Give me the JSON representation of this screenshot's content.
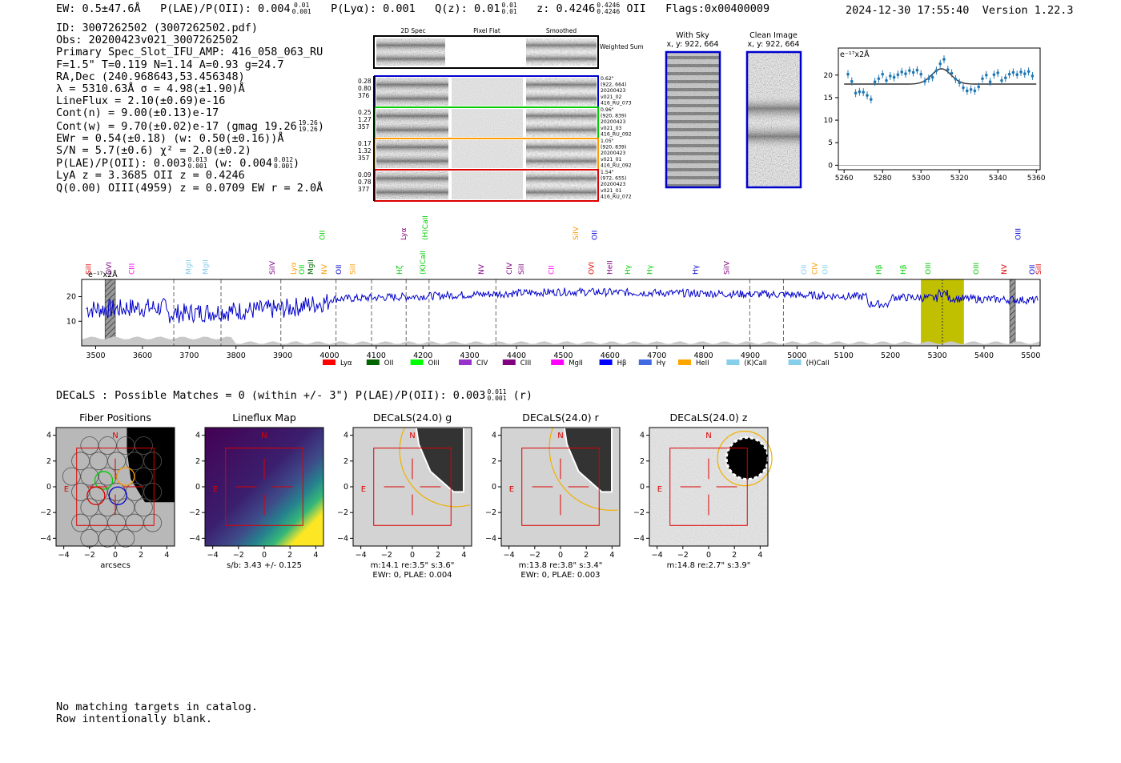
{
  "header": {
    "ew": "EW: 0.5±47.6Å",
    "plae": "P(LAE)/P(OII): 0.004",
    "plae_hi": "0.01",
    "plae_lo": "0.001",
    "plya": "P(Lyα): 0.001",
    "qz": "Q(z): 0.01",
    "qz_hi": "0.01",
    "qz_lo": "0.01",
    "z": "z: 0.4246",
    "z_hi": "0.4246",
    "z_lo": "0.4246",
    "z_line": "OII",
    "flags": "Flags:0x00400009",
    "timestamp": "2024-12-30 17:55:40",
    "version": "Version 1.22.3"
  },
  "info": {
    "id": "ID: 3007262502 (3007262502.pdf)",
    "obs": "Obs: 20200423v021_3007262502",
    "primary": "Primary Spec_Slot_IFU_AMP: 416_058_063_RU",
    "fiber_params": "F=1.5\"  T=0.119  N=1.14  A=0.93  g=24.7",
    "radec": "RA,Dec (240.968643,53.456348)",
    "lambda": "λ = 5310.63Å  σ = 4.98(±1.90)Å",
    "lineflux": "LineFlux = 2.10(±0.69)e-16",
    "cont_n": "Cont(n) = 9.00(±0.13)e-17",
    "cont_w": "Cont(w) = 9.70(±0.02)e-17 (gmag 19.26",
    "cont_w_hi": "19.26",
    "cont_w_lo": "19.26",
    "ewr": "EWr = 0.54(±0.18) (w: 0.50(±0.16))Å",
    "sn": "S/N = 5.7(±0.6)  χ² = 2.0(±0.2)",
    "plae": "P(LAE)/P(OII): 0.003",
    "plae_hi": "0.013",
    "plae_lo": "0.001",
    "plae_w": "(w: 0.004",
    "plae_w_hi": "0.012",
    "plae_w_lo": "0.001",
    "lya": "LyA z = 3.3685  OII z = 0.4246",
    "q": "Q(0.00) OIII(4959) z = 0.0709  EW r = 2.0Å"
  },
  "cutouts": {
    "col_headers": [
      "2D Spec",
      "Pixel Flat",
      "Smoothed"
    ],
    "weighted_sum": "Weighted Sum",
    "rows": [
      {
        "left": [
          "0.28",
          "0.80",
          "376"
        ],
        "right": [
          "0.62\"",
          "(922, 664)",
          "20200423",
          "v021_02",
          "416_RU_073"
        ],
        "color": "#0000cc"
      },
      {
        "left": [
          "0.25",
          "1.27",
          "357"
        ],
        "right": [
          "0.96\"",
          "(920, 839)",
          "20200423",
          "v021_03",
          "416_RU_092"
        ],
        "color": "#00cc00"
      },
      {
        "left": [
          "0.17",
          "1.32",
          "357"
        ],
        "right": [
          "1.05\"",
          "(920, 839)",
          "20200423",
          "v021_01",
          "416_RU_092"
        ],
        "color": "#ff9900"
      },
      {
        "left": [
          "0.09",
          "0.78",
          "377"
        ],
        "right": [
          "1.54\"",
          "(972, 655)",
          "20200423",
          "v021_01",
          "416_RU_072"
        ],
        "color": "#dd0000"
      }
    ],
    "with_sky_title": "With Sky",
    "with_sky_xy": "x, y: 922, 664",
    "clean_title": "Clean Image",
    "clean_xy": "x, y: 922, 664"
  },
  "chart_data": [
    {
      "type": "scatter",
      "name": "zoom-spectrum",
      "units_label": "e⁻¹⁷x2Å",
      "xlim": [
        5257,
        5362
      ],
      "ylim": [
        -1,
        26
      ],
      "xticks": [
        5260,
        5280,
        5300,
        5320,
        5340,
        5360
      ],
      "yticks": [
        0,
        5,
        10,
        15,
        20
      ],
      "x": [
        5262,
        5264,
        5266,
        5268,
        5270,
        5272,
        5274,
        5276,
        5278,
        5280,
        5282,
        5284,
        5286,
        5288,
        5290,
        5292,
        5294,
        5296,
        5298,
        5300,
        5302,
        5304,
        5306,
        5308,
        5310,
        5312,
        5314,
        5316,
        5318,
        5320,
        5322,
        5324,
        5326,
        5328,
        5330,
        5332,
        5334,
        5336,
        5338,
        5340,
        5342,
        5344,
        5346,
        5348,
        5350,
        5352,
        5354,
        5356,
        5358
      ],
      "y": [
        20.2,
        18.6,
        16,
        16.3,
        16.2,
        15.5,
        14.6,
        18.5,
        19.2,
        20.2,
        18.8,
        19.8,
        19.5,
        20.1,
        20.7,
        20.3,
        21,
        20.6,
        21.1,
        20.2,
        18.6,
        19.2,
        19.5,
        21,
        22.5,
        23.5,
        21.2,
        20.4,
        19.1,
        18.3,
        17.2,
        16.5,
        16.8,
        16.5,
        17.4,
        19.2,
        20,
        18.5,
        20.1,
        20.5,
        18.8,
        19.4,
        20.2,
        20.6,
        20.1,
        20.7,
        20.3,
        20.8,
        19.8
      ],
      "fit": {
        "continuum": 18,
        "amplitude": 3.4,
        "center": 5310.6,
        "sigma": 5
      }
    },
    {
      "type": "line",
      "name": "full-spectrum",
      "units_label": "e⁻¹⁷x2Å",
      "xlim": [
        3470,
        5520
      ],
      "ylim": [
        0,
        27
      ],
      "xticks": [
        3500,
        3600,
        3700,
        3800,
        3900,
        4000,
        4100,
        4200,
        4300,
        4400,
        4500,
        4600,
        4700,
        4800,
        4900,
        5000,
        5100,
        5200,
        5300,
        5400,
        5500
      ],
      "yticks": [
        10,
        20
      ],
      "line_marks": [
        3667,
        3768,
        3896,
        4014,
        4090,
        4164,
        4213,
        4356,
        4899,
        4971,
        5311
      ],
      "line_labels": [
        {
          "x": 3490,
          "text": "SiII",
          "color": "#dd0000",
          "row": "mid"
        },
        {
          "x": 3533,
          "text": "OVI",
          "color": "#800080",
          "row": "mid"
        },
        {
          "x": 3582,
          "text": "CIII",
          "color": "#ff00ff",
          "row": "mid"
        },
        {
          "x": 3704,
          "text": "MgII",
          "color": "#87ceeb",
          "row": "mid"
        },
        {
          "x": 3740,
          "text": "MgII",
          "color": "#87ceeb",
          "row": "mid"
        },
        {
          "x": 3883,
          "text": "SiIV",
          "color": "#800080",
          "row": "mid"
        },
        {
          "x": 3928,
          "text": "Lyα",
          "color": "#ff9900",
          "row": "mid"
        },
        {
          "x": 3946,
          "text": "OII",
          "color": "#00cc00",
          "row": "mid"
        },
        {
          "x": 3965,
          "text": "MgII",
          "color": "#006400",
          "row": "mid"
        },
        {
          "x": 3994,
          "text": "NV",
          "color": "#ff9900",
          "row": "mid"
        },
        {
          "x": 4025,
          "text": "OII",
          "color": "#0000cc",
          "row": "mid"
        },
        {
          "x": 4055,
          "text": "SiII",
          "color": "#ff9900",
          "row": "mid"
        },
        {
          "x": 4155,
          "text": "Hζ",
          "color": "#00cc00",
          "row": "mid"
        },
        {
          "x": 4205,
          "text": "(K)CaII",
          "color": "#00cc00",
          "row": "mid"
        },
        {
          "x": 4330,
          "text": "NV",
          "color": "#800080",
          "row": "mid"
        },
        {
          "x": 4390,
          "text": "CIV",
          "color": "#800080",
          "row": "mid"
        },
        {
          "x": 4415,
          "text": "SiII",
          "color": "#800080",
          "row": "mid"
        },
        {
          "x": 4480,
          "text": "CII",
          "color": "#ff00ff",
          "row": "mid"
        },
        {
          "x": 4565,
          "text": "OVI",
          "color": "#dd0000",
          "row": "mid"
        },
        {
          "x": 4605,
          "text": "HeII",
          "color": "#800080",
          "row": "mid"
        },
        {
          "x": 4643,
          "text": "Hγ",
          "color": "#00cc00",
          "row": "mid"
        },
        {
          "x": 4690,
          "text": "Hγ",
          "color": "#00cc00",
          "row": "mid"
        },
        {
          "x": 4788,
          "text": "Hγ",
          "color": "#0000cc",
          "row": "mid"
        },
        {
          "x": 4855,
          "text": "SiIV",
          "color": "#800080",
          "row": "mid"
        },
        {
          "x": 5020,
          "text": "OII",
          "color": "#87ceeb",
          "row": "mid"
        },
        {
          "x": 5043,
          "text": "CIV",
          "color": "#ff9900",
          "row": "mid"
        },
        {
          "x": 5065,
          "text": "OII",
          "color": "#87ceeb",
          "row": "mid"
        },
        {
          "x": 5180,
          "text": "Hβ",
          "color": "#00cc00",
          "row": "mid"
        },
        {
          "x": 5232,
          "text": "Hβ",
          "color": "#00cc00",
          "row": "mid"
        },
        {
          "x": 5285,
          "text": "OIII",
          "color": "#00cc00",
          "row": "mid"
        },
        {
          "x": 5388,
          "text": "OIII",
          "color": "#00cc00",
          "row": "mid"
        },
        {
          "x": 5448,
          "text": "NV",
          "color": "#dd0000",
          "row": "mid"
        },
        {
          "x": 5508,
          "text": "OII",
          "color": "#0000cc",
          "row": "mid"
        },
        {
          "x": 5568,
          "text": "SiII",
          "color": "#dd0000",
          "row": "mid"
        },
        {
          "x": 3990,
          "text": "OII",
          "color": "#00cc00",
          "row": "top"
        },
        {
          "x": 4164,
          "text": "Lyα",
          "color": "#800080",
          "row": "top"
        },
        {
          "x": 4210,
          "text": "(H)CaII",
          "color": "#00cc00",
          "row": "top"
        },
        {
          "x": 4532,
          "text": "SiIV",
          "color": "#ff9900",
          "row": "top"
        },
        {
          "x": 4572,
          "text": "OII",
          "color": "#0000cc",
          "row": "top"
        },
        {
          "x": 5478,
          "text": "OIII",
          "color": "#0000cc",
          "row": "top"
        }
      ],
      "legend": [
        {
          "text": "Lyα",
          "color": "#ff0000"
        },
        {
          "text": "OII",
          "color": "#006400"
        },
        {
          "text": "OIII",
          "color": "#00ff00"
        },
        {
          "text": "CIV",
          "color": "#9932cc"
        },
        {
          "text": "CIII",
          "color": "#800080"
        },
        {
          "text": "MgII",
          "color": "#ff00ff"
        },
        {
          "text": "Hβ",
          "color": "#0000ff"
        },
        {
          "text": "Hγ",
          "color": "#4169e1"
        },
        {
          "text": "HeII",
          "color": "#ffa500"
        },
        {
          "text": "(K)CaII",
          "color": "#87ceeb"
        },
        {
          "text": "(H)CaII",
          "color": "#87ceeb"
        }
      ],
      "highlight": [
        5265,
        5357
      ],
      "hatched": [
        [
          3520,
          3542
        ],
        [
          5455,
          5467
        ]
      ],
      "series_color": "#0000cc"
    }
  ],
  "decals": {
    "summary": "DECaLS : Possible Matches = 0 (within +/- 3\")  P(LAE)/P(OII): 0.003",
    "summary_hi": "0.011",
    "summary_lo": "0.001",
    "summary_band": "(r)",
    "panels": [
      {
        "title": "Fiber Positions",
        "cap1": "arcsecs",
        "cap2": ""
      },
      {
        "title": "Lineflux Map",
        "cap1": "s/b: 3.43 +/- 0.125",
        "cap2": ""
      },
      {
        "title": "DECaLS(24.0) g",
        "cap1": "m:14.1  re:3.5\"  s:3.6\"",
        "cap2": "EWr: 0, PLAE: 0.004"
      },
      {
        "title": "DECaLS(24.0) r",
        "cap1": "m:13.8  re:3.8\"  s:3.4\"",
        "cap2": "EWr: 0, PLAE: 0.003"
      },
      {
        "title": "DECaLS(24.0) z",
        "cap1": "m:14.8  re:2.7\"  s:3.9\"",
        "cap2": ""
      }
    ],
    "axis_ticks": [
      -4,
      -2,
      0,
      2,
      4
    ],
    "compass_n": "N",
    "compass_e": "E"
  },
  "footer": {
    "line1": "No matching targets in catalog.",
    "line2": "Row intentionally blank."
  }
}
